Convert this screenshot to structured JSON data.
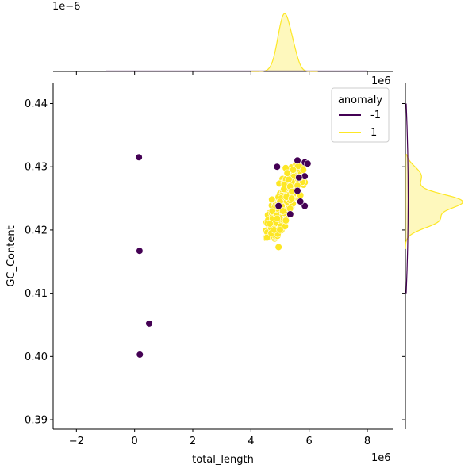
{
  "chart_data": {
    "type": "scatter",
    "title": "",
    "xlabel": "total_length",
    "ylabel": "GC_Content",
    "x_offset_label": "1e6",
    "top_marginal_offset_label": "1e−6",
    "right_marginal_offset_label": "1e6",
    "xlim": [
      -2.8,
      8.9
    ],
    "ylim": [
      0.3885,
      0.4432
    ],
    "xticks": [
      -2,
      0,
      2,
      4,
      6,
      8
    ],
    "xtick_labels": [
      "−2",
      "0",
      "2",
      "4",
      "6",
      "8"
    ],
    "yticks": [
      0.39,
      0.4,
      0.41,
      0.42,
      0.43,
      0.44
    ],
    "ytick_labels": [
      "0.39",
      "0.40",
      "0.41",
      "0.42",
      "0.43",
      "0.44"
    ],
    "grid": false,
    "legend": {
      "title": "anomaly",
      "placement": "top-right",
      "entries": [
        {
          "label": "-1",
          "color": "#440154"
        },
        {
          "label": "1",
          "color": "#fde725"
        }
      ]
    },
    "series": [
      {
        "name": "-1",
        "color": "#440154",
        "points": [
          [
            0.15,
            0.4315
          ],
          [
            0.17,
            0.4167
          ],
          [
            0.5,
            0.4052
          ],
          [
            0.18,
            0.4003
          ],
          [
            4.9,
            0.43
          ],
          [
            5.6,
            0.431
          ],
          [
            5.85,
            0.4307
          ],
          [
            5.95,
            0.4305
          ],
          [
            5.85,
            0.4285
          ],
          [
            5.65,
            0.4283
          ],
          [
            5.85,
            0.4238
          ],
          [
            4.95,
            0.4238
          ],
          [
            5.35,
            0.4225
          ],
          [
            5.6,
            0.4262
          ],
          [
            5.7,
            0.4245
          ]
        ]
      },
      {
        "name": "1",
        "color": "#fde725",
        "cluster": {
          "x_range": [
            4.5,
            5.9
          ],
          "y_range": [
            0.4185,
            0.4305
          ]
        },
        "points": [
          [
            4.95,
            0.4173
          ],
          [
            4.55,
            0.4188
          ],
          [
            4.7,
            0.4195
          ],
          [
            4.8,
            0.42
          ],
          [
            5.0,
            0.42
          ],
          [
            5.2,
            0.4215
          ],
          [
            4.65,
            0.421
          ],
          [
            5.1,
            0.423
          ],
          [
            5.4,
            0.425
          ],
          [
            5.6,
            0.427
          ],
          [
            5.3,
            0.428
          ],
          [
            5.45,
            0.4295
          ],
          [
            5.8,
            0.4295
          ],
          [
            5.25,
            0.429
          ],
          [
            5.7,
            0.4255
          ],
          [
            5.0,
            0.4245
          ]
        ]
      }
    ],
    "marginals": {
      "top": {
        "type": "kde",
        "variable": "total_length",
        "peak": 5.15
      },
      "right": {
        "type": "kde",
        "variable": "GC_Content",
        "peak": 0.4245
      }
    }
  }
}
